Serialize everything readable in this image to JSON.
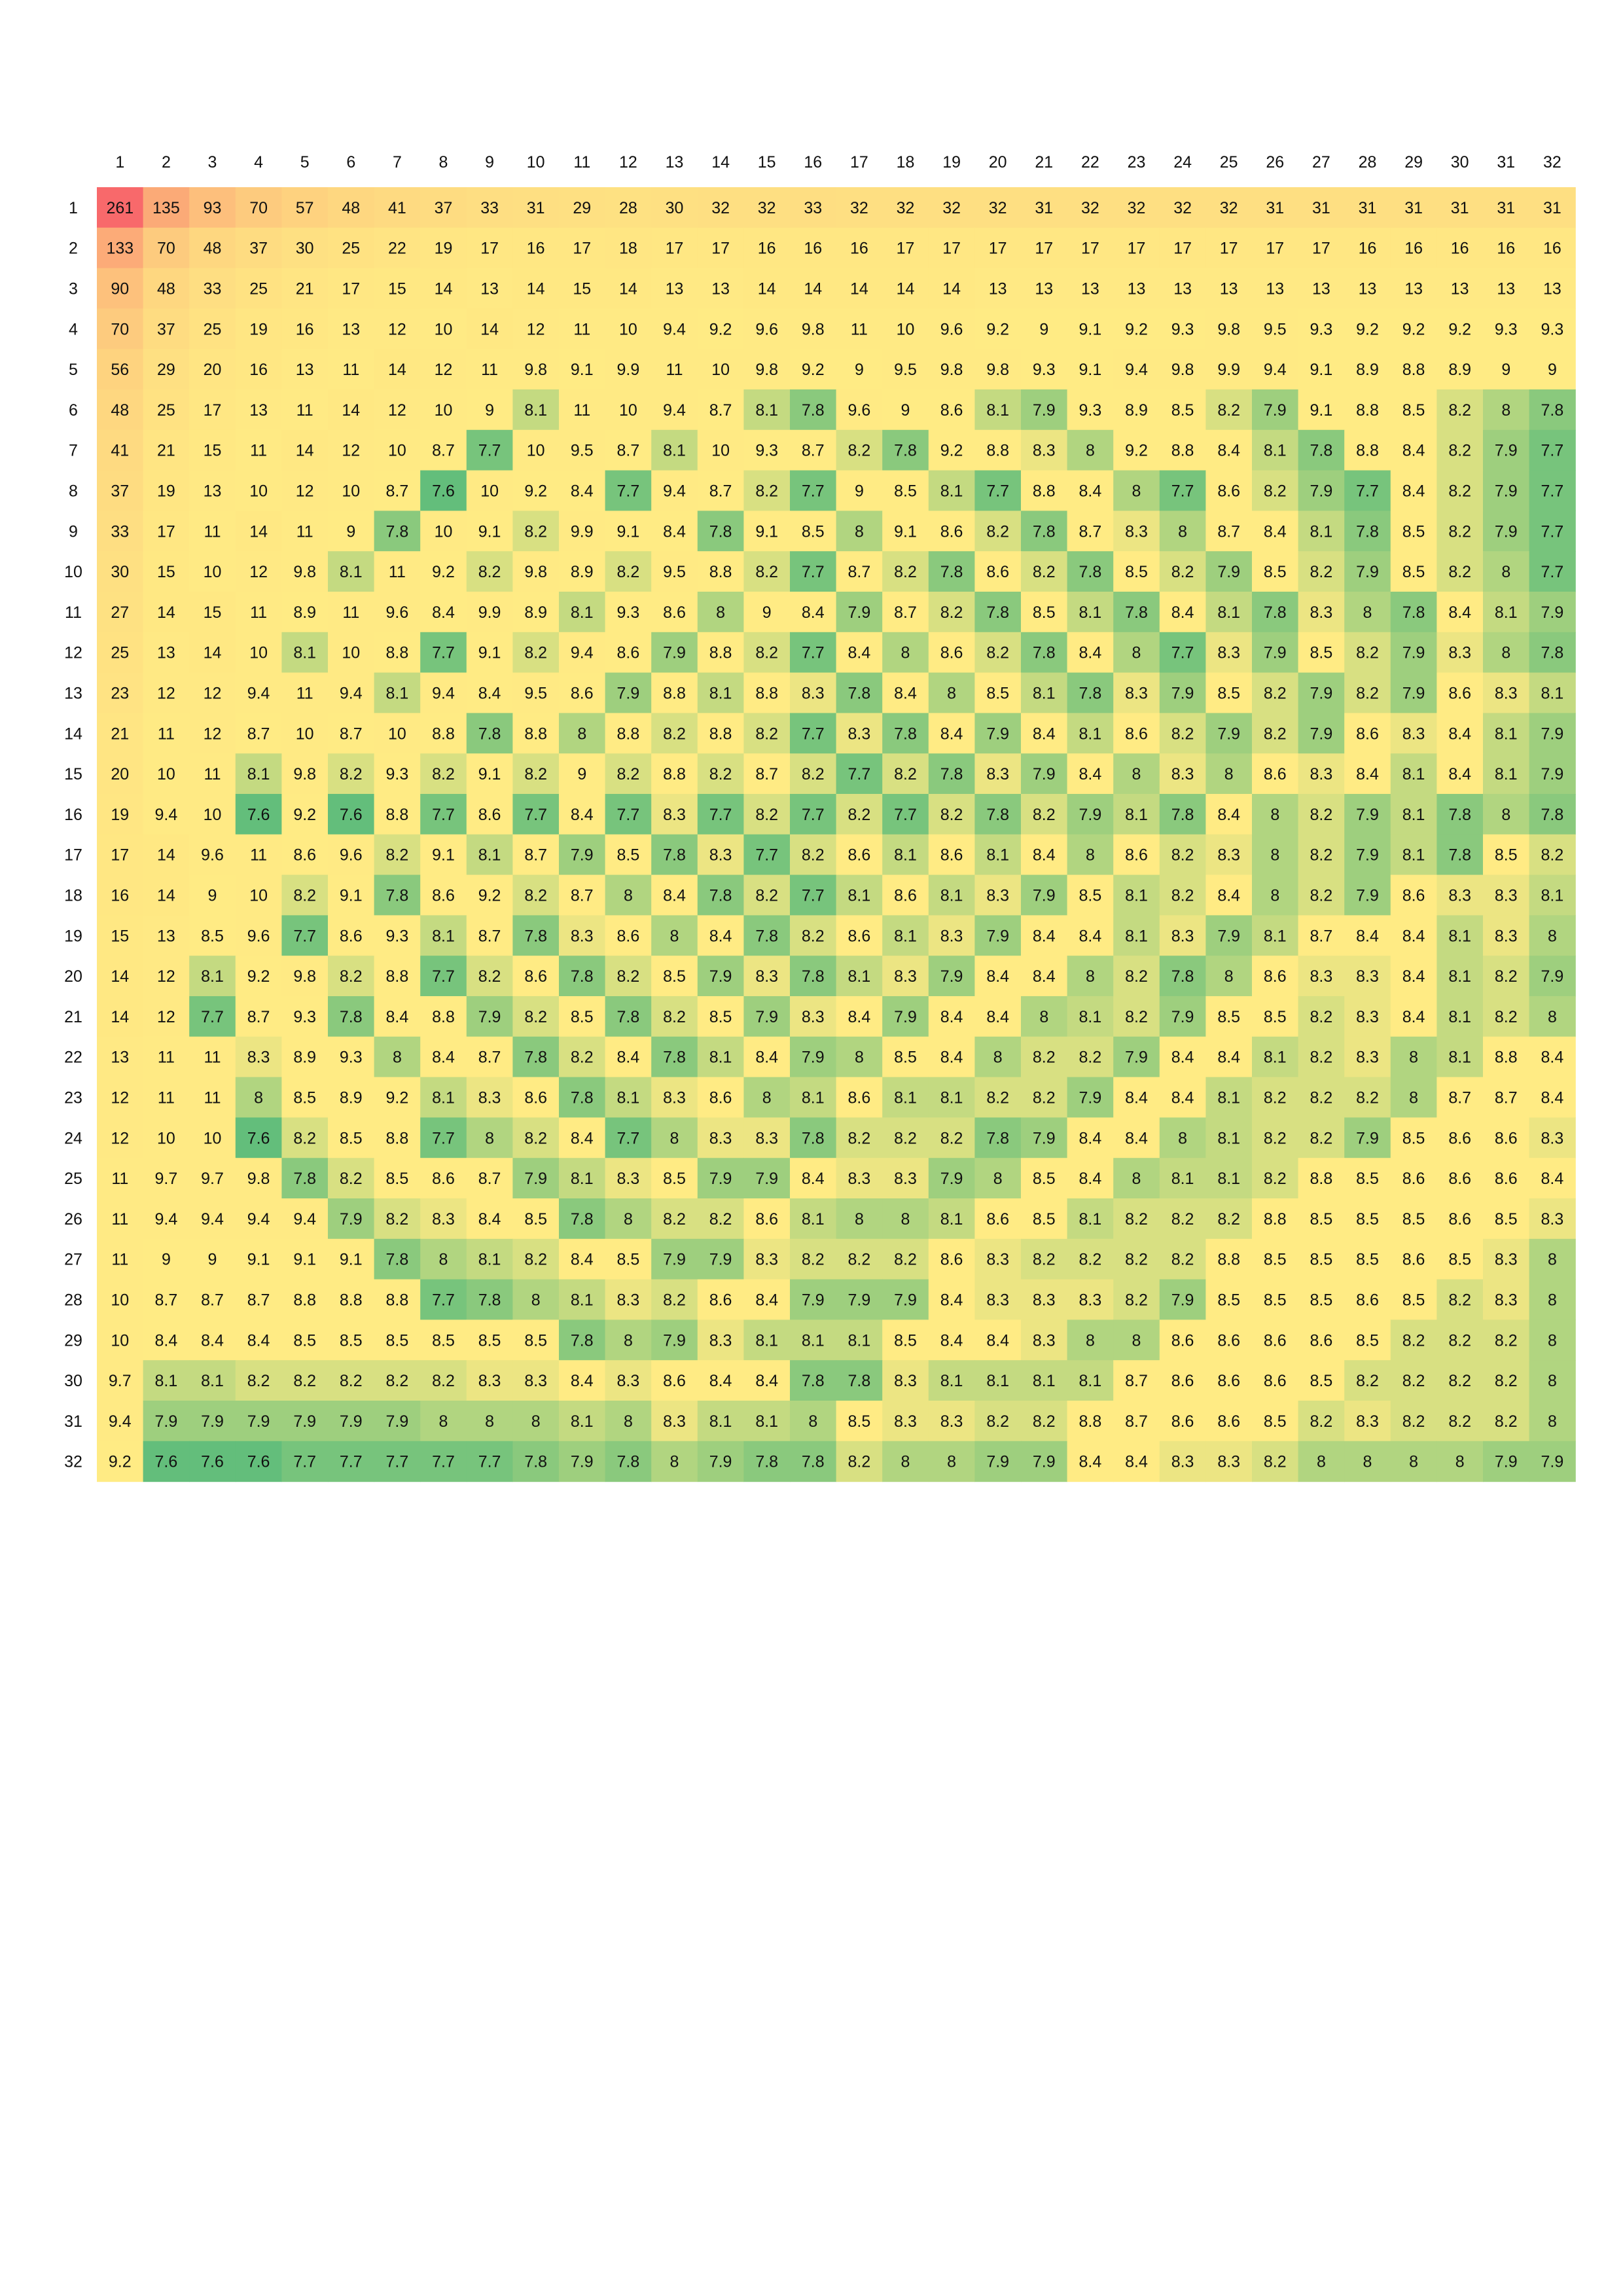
{
  "chart_data": {
    "type": "heatmap",
    "title": "",
    "xlabel": "",
    "ylabel": "",
    "x_labels": [
      "1",
      "2",
      "3",
      "4",
      "5",
      "6",
      "7",
      "8",
      "9",
      "10",
      "11",
      "12",
      "13",
      "14",
      "15",
      "16",
      "17",
      "18",
      "19",
      "20",
      "21",
      "22",
      "23",
      "24",
      "25",
      "26",
      "27",
      "28",
      "29",
      "30",
      "31",
      "32"
    ],
    "y_labels": [
      "1",
      "2",
      "3",
      "4",
      "5",
      "6",
      "7",
      "8",
      "9",
      "10",
      "11",
      "12",
      "13",
      "14",
      "15",
      "16",
      "17",
      "18",
      "19",
      "20",
      "21",
      "22",
      "23",
      "24",
      "25",
      "26",
      "27",
      "28",
      "29",
      "30",
      "31",
      "32"
    ],
    "colorscale": {
      "high": "#f8696b",
      "mid": "#ffeb84",
      "low": "#63be7b"
    },
    "values": [
      [
        261,
        135,
        93,
        70,
        57,
        48,
        41,
        37,
        33,
        31,
        29,
        28,
        30,
        32,
        32,
        33,
        32,
        32,
        32,
        32,
        31,
        32,
        32,
        32,
        32,
        31,
        31,
        31,
        31,
        31,
        31,
        31
      ],
      [
        133,
        70,
        48,
        37,
        30,
        25,
        22,
        19,
        17,
        16,
        17,
        18,
        17,
        17,
        16,
        16,
        16,
        17,
        17,
        17,
        17,
        17,
        17,
        17,
        17,
        17,
        17,
        16,
        16,
        16,
        16,
        16
      ],
      [
        90,
        48,
        33,
        25,
        21,
        17,
        15,
        14,
        13,
        14,
        15,
        14,
        13,
        13,
        14,
        14,
        14,
        14,
        14,
        13,
        13,
        13,
        13,
        13,
        13,
        13,
        13,
        13,
        13,
        13,
        13,
        13
      ],
      [
        70,
        37,
        25,
        19,
        16,
        13,
        12,
        10,
        14,
        12,
        11,
        10,
        9.4,
        9.2,
        9.6,
        9.8,
        11,
        10,
        9.6,
        9.2,
        9,
        9.1,
        9.2,
        9.3,
        9.8,
        9.5,
        9.3,
        9.2,
        9.2,
        9.2,
        9.3,
        9.3
      ],
      [
        56,
        29,
        20,
        16,
        13,
        11,
        14,
        12,
        11,
        9.8,
        9.1,
        9.9,
        11,
        10,
        9.8,
        9.2,
        9,
        9.5,
        9.8,
        9.8,
        9.3,
        9.1,
        9.4,
        9.8,
        9.9,
        9.4,
        9.1,
        8.9,
        8.8,
        8.9,
        9,
        9
      ],
      [
        48,
        25,
        17,
        13,
        11,
        14,
        12,
        10,
        9,
        8.1,
        11,
        10,
        9.4,
        8.7,
        8.1,
        7.8,
        9.6,
        9,
        8.6,
        8.1,
        7.9,
        9.3,
        8.9,
        8.5,
        8.2,
        7.9,
        9.1,
        8.8,
        8.5,
        8.2,
        8,
        7.8
      ],
      [
        41,
        21,
        15,
        11,
        14,
        12,
        10,
        8.7,
        7.7,
        10,
        9.5,
        8.7,
        8.1,
        10,
        9.3,
        8.7,
        8.2,
        7.8,
        9.2,
        8.8,
        8.3,
        8,
        9.2,
        8.8,
        8.4,
        8.1,
        7.8,
        8.8,
        8.4,
        8.2,
        7.9,
        7.7
      ],
      [
        37,
        19,
        13,
        10,
        12,
        10,
        8.7,
        7.6,
        10,
        9.2,
        8.4,
        7.7,
        9.4,
        8.7,
        8.2,
        7.7,
        9,
        8.5,
        8.1,
        7.7,
        8.8,
        8.4,
        8,
        7.7,
        8.6,
        8.2,
        7.9,
        7.7,
        8.4,
        8.2,
        7.9,
        7.7
      ],
      [
        33,
        17,
        11,
        14,
        11,
        9,
        7.8,
        10,
        9.1,
        8.2,
        9.9,
        9.1,
        8.4,
        7.8,
        9.1,
        8.5,
        8,
        9.1,
        8.6,
        8.2,
        7.8,
        8.7,
        8.3,
        8,
        8.7,
        8.4,
        8.1,
        7.8,
        8.5,
        8.2,
        7.9,
        7.7
      ],
      [
        30,
        15,
        10,
        12,
        9.8,
        8.1,
        11,
        9.2,
        8.2,
        9.8,
        8.9,
        8.2,
        9.5,
        8.8,
        8.2,
        7.7,
        8.7,
        8.2,
        7.8,
        8.6,
        8.2,
        7.8,
        8.5,
        8.2,
        7.9,
        8.5,
        8.2,
        7.9,
        8.5,
        8.2,
        8,
        7.7
      ],
      [
        27,
        14,
        15,
        11,
        8.9,
        11,
        9.6,
        8.4,
        9.9,
        8.9,
        8.1,
        9.3,
        8.6,
        8,
        9,
        8.4,
        7.9,
        8.7,
        8.2,
        7.8,
        8.5,
        8.1,
        7.8,
        8.4,
        8.1,
        7.8,
        8.3,
        8,
        7.8,
        8.4,
        8.1,
        7.9
      ],
      [
        25,
        13,
        14,
        10,
        8.1,
        10,
        8.8,
        7.7,
        9.1,
        8.2,
        9.4,
        8.6,
        7.9,
        8.8,
        8.2,
        7.7,
        8.4,
        8,
        8.6,
        8.2,
        7.8,
        8.4,
        8,
        7.7,
        8.3,
        7.9,
        8.5,
        8.2,
        7.9,
        8.3,
        8,
        7.8
      ],
      [
        23,
        12,
        12,
        9.4,
        11,
        9.4,
        8.1,
        9.4,
        8.4,
        9.5,
        8.6,
        7.9,
        8.8,
        8.1,
        8.8,
        8.3,
        7.8,
        8.4,
        8,
        8.5,
        8.1,
        7.8,
        8.3,
        7.9,
        8.5,
        8.2,
        7.9,
        8.2,
        7.9,
        8.6,
        8.3,
        8.1
      ],
      [
        21,
        11,
        12,
        8.7,
        10,
        8.7,
        10,
        8.8,
        7.8,
        8.8,
        8,
        8.8,
        8.2,
        8.8,
        8.2,
        7.7,
        8.3,
        7.8,
        8.4,
        7.9,
        8.4,
        8.1,
        8.6,
        8.2,
        7.9,
        8.2,
        7.9,
        8.6,
        8.3,
        8.4,
        8.1,
        7.9
      ],
      [
        20,
        10,
        11,
        8.1,
        9.8,
        8.2,
        9.3,
        8.2,
        9.1,
        8.2,
        9,
        8.2,
        8.8,
        8.2,
        8.7,
        8.2,
        7.7,
        8.2,
        7.8,
        8.3,
        7.9,
        8.4,
        8,
        8.3,
        8,
        8.6,
        8.3,
        8.4,
        8.1,
        8.4,
        8.1,
        7.9
      ],
      [
        19,
        9.4,
        10,
        7.6,
        9.2,
        7.6,
        8.8,
        7.7,
        8.6,
        7.7,
        8.4,
        7.7,
        8.3,
        7.7,
        8.2,
        7.7,
        8.2,
        7.7,
        8.2,
        7.8,
        8.2,
        7.9,
        8.1,
        7.8,
        8.4,
        8,
        8.2,
        7.9,
        8.1,
        7.8,
        8,
        7.8
      ],
      [
        17,
        14,
        9.6,
        11,
        8.6,
        9.6,
        8.2,
        9.1,
        8.1,
        8.7,
        7.9,
        8.5,
        7.8,
        8.3,
        7.7,
        8.2,
        8.6,
        8.1,
        8.6,
        8.1,
        8.4,
        8,
        8.6,
        8.2,
        8.3,
        8,
        8.2,
        7.9,
        8.1,
        7.8,
        8.5,
        8.2
      ],
      [
        16,
        14,
        9,
        10,
        8.2,
        9.1,
        7.8,
        8.6,
        9.2,
        8.2,
        8.7,
        8,
        8.4,
        7.8,
        8.2,
        7.7,
        8.1,
        8.6,
        8.1,
        8.3,
        7.9,
        8.5,
        8.1,
        8.2,
        8.4,
        8,
        8.2,
        7.9,
        8.6,
        8.3,
        8.3,
        8.1
      ],
      [
        15,
        13,
        8.5,
        9.6,
        7.7,
        8.6,
        9.3,
        8.1,
        8.7,
        7.8,
        8.3,
        8.6,
        8,
        8.4,
        7.8,
        8.2,
        8.6,
        8.1,
        8.3,
        7.9,
        8.4,
        8.4,
        8.1,
        8.3,
        7.9,
        8.1,
        8.7,
        8.4,
        8.4,
        8.1,
        8.3,
        8
      ],
      [
        14,
        12,
        8.1,
        9.2,
        9.8,
        8.2,
        8.8,
        7.7,
        8.2,
        8.6,
        7.8,
        8.2,
        8.5,
        7.9,
        8.3,
        7.8,
        8.1,
        8.3,
        7.9,
        8.4,
        8.4,
        8,
        8.2,
        7.8,
        8,
        8.6,
        8.3,
        8.3,
        8.4,
        8.1,
        8.2,
        7.9
      ],
      [
        14,
        12,
        7.7,
        8.7,
        9.3,
        7.8,
        8.4,
        8.8,
        7.9,
        8.2,
        8.5,
        7.8,
        8.2,
        8.5,
        7.9,
        8.3,
        8.4,
        7.9,
        8.4,
        8.4,
        8,
        8.1,
        8.2,
        7.9,
        8.5,
        8.5,
        8.2,
        8.3,
        8.4,
        8.1,
        8.2,
        8
      ],
      [
        13,
        11,
        11,
        8.3,
        8.9,
        9.3,
        8,
        8.4,
        8.7,
        7.8,
        8.2,
        8.4,
        7.8,
        8.1,
        8.4,
        7.9,
        8,
        8.5,
        8.4,
        8,
        8.2,
        8.2,
        7.9,
        8.4,
        8.4,
        8.1,
        8.2,
        8.3,
        8,
        8.1,
        8.8,
        8.4
      ],
      [
        12,
        11,
        11,
        8,
        8.5,
        8.9,
        9.2,
        8.1,
        8.3,
        8.6,
        7.8,
        8.1,
        8.3,
        8.6,
        8,
        8.1,
        8.6,
        8.1,
        8.1,
        8.2,
        8.2,
        7.9,
        8.4,
        8.4,
        8.1,
        8.2,
        8.2,
        8.2,
        8,
        8.7,
        8.7,
        8.4
      ],
      [
        12,
        10,
        10,
        7.6,
        8.2,
        8.5,
        8.8,
        7.7,
        8,
        8.2,
        8.4,
        7.7,
        8,
        8.3,
        8.3,
        7.8,
        8.2,
        8.2,
        8.2,
        7.8,
        7.9,
        8.4,
        8.4,
        8,
        8.1,
        8.2,
        8.2,
        7.9,
        8.5,
        8.6,
        8.6,
        8.3
      ],
      [
        11,
        9.7,
        9.7,
        9.8,
        7.8,
        8.2,
        8.5,
        8.6,
        8.7,
        7.9,
        8.1,
        8.3,
        8.5,
        7.9,
        7.9,
        8.4,
        8.3,
        8.3,
        7.9,
        8,
        8.5,
        8.4,
        8,
        8.1,
        8.1,
        8.2,
        8.8,
        8.5,
        8.6,
        8.6,
        8.6,
        8.4
      ],
      [
        11,
        9.4,
        9.4,
        9.4,
        9.4,
        7.9,
        8.2,
        8.3,
        8.4,
        8.5,
        7.8,
        8,
        8.2,
        8.2,
        8.6,
        8.1,
        8,
        8,
        8.1,
        8.6,
        8.5,
        8.1,
        8.2,
        8.2,
        8.2,
        8.8,
        8.5,
        8.5,
        8.5,
        8.6,
        8.5,
        8.3
      ],
      [
        11,
        9,
        9,
        9.1,
        9.1,
        9.1,
        7.8,
        8,
        8.1,
        8.2,
        8.4,
        8.5,
        7.9,
        7.9,
        8.3,
        8.2,
        8.2,
        8.2,
        8.6,
        8.3,
        8.2,
        8.2,
        8.2,
        8.2,
        8.8,
        8.5,
        8.5,
        8.5,
        8.6,
        8.5,
        8.3,
        8
      ],
      [
        10,
        8.7,
        8.7,
        8.7,
        8.8,
        8.8,
        8.8,
        7.7,
        7.8,
        8,
        8.1,
        8.3,
        8.2,
        8.6,
        8.4,
        7.9,
        7.9,
        7.9,
        8.4,
        8.3,
        8.3,
        8.3,
        8.2,
        7.9,
        8.5,
        8.5,
        8.5,
        8.6,
        8.5,
        8.2,
        8.3,
        8
      ],
      [
        10,
        8.4,
        8.4,
        8.4,
        8.5,
        8.5,
        8.5,
        8.5,
        8.5,
        8.5,
        7.8,
        8,
        7.9,
        8.3,
        8.1,
        8.1,
        8.1,
        8.5,
        8.4,
        8.4,
        8.3,
        8,
        8,
        8.6,
        8.6,
        8.6,
        8.6,
        8.5,
        8.2,
        8.2,
        8.2,
        8
      ],
      [
        9.7,
        8.1,
        8.1,
        8.2,
        8.2,
        8.2,
        8.2,
        8.2,
        8.3,
        8.3,
        8.4,
        8.3,
        8.6,
        8.4,
        8.4,
        7.8,
        7.8,
        8.3,
        8.1,
        8.1,
        8.1,
        8.1,
        8.7,
        8.6,
        8.6,
        8.6,
        8.5,
        8.2,
        8.2,
        8.2,
        8.2,
        8
      ],
      [
        9.4,
        7.9,
        7.9,
        7.9,
        7.9,
        7.9,
        7.9,
        8,
        8,
        8,
        8.1,
        8,
        8.3,
        8.1,
        8.1,
        8,
        8.5,
        8.3,
        8.3,
        8.2,
        8.2,
        8.8,
        8.7,
        8.6,
        8.6,
        8.5,
        8.2,
        8.3,
        8.2,
        8.2,
        8.2,
        8
      ],
      [
        9.2,
        7.6,
        7.6,
        7.6,
        7.7,
        7.7,
        7.7,
        7.7,
        7.7,
        7.8,
        7.9,
        7.8,
        8,
        7.9,
        7.8,
        7.8,
        8.2,
        8,
        8,
        7.9,
        7.9,
        8.4,
        8.4,
        8.3,
        8.3,
        8.2,
        8,
        8,
        8,
        8,
        7.9,
        7.9
      ]
    ]
  }
}
